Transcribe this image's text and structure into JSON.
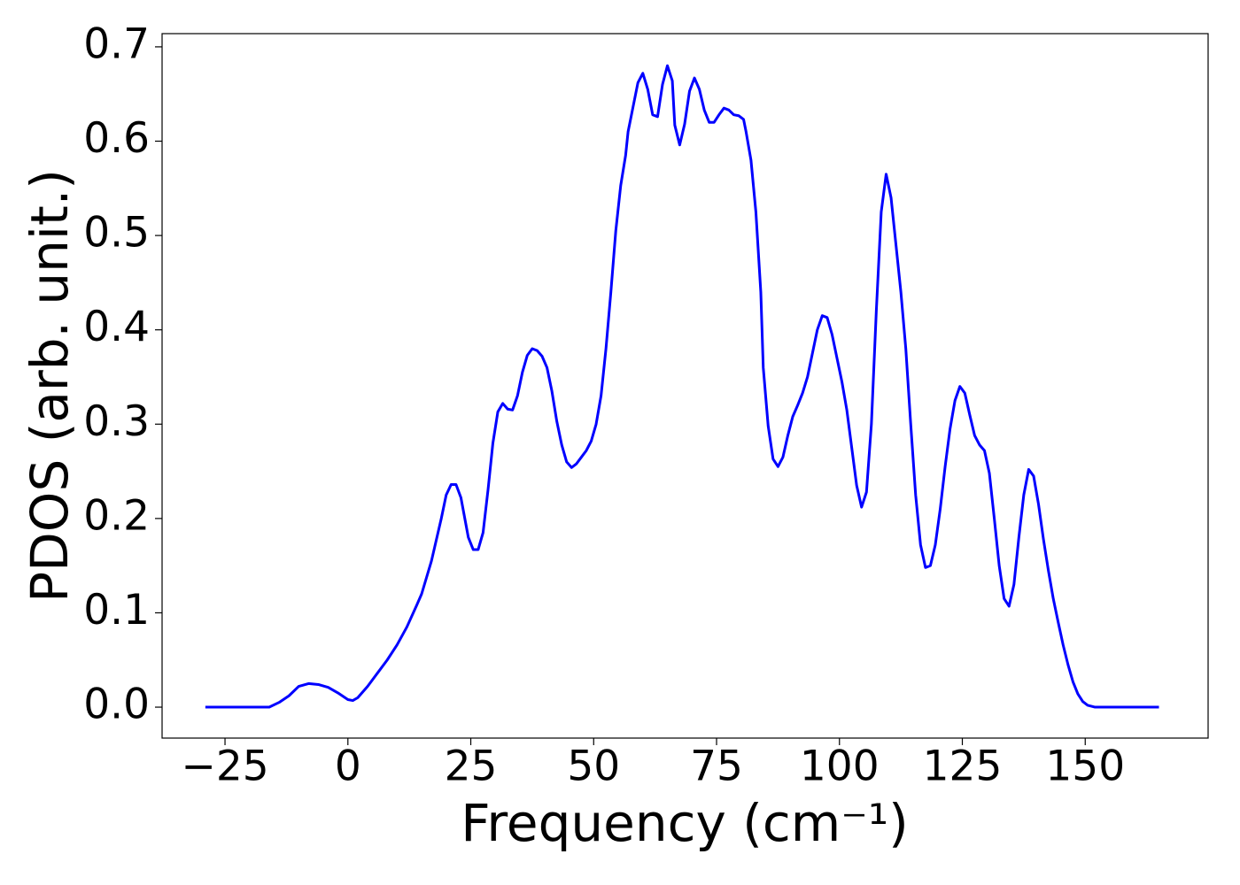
{
  "chart_data": {
    "type": "line",
    "xlabel": "Frequency (cm⁻¹)",
    "ylabel": "PDOS (arb. unit.)",
    "xlim": [
      -37.8,
      175
    ],
    "ylim": [
      -0.0328,
      0.714
    ],
    "xticks": [
      {
        "value": -25,
        "label": "−25"
      },
      0,
      25,
      50,
      75,
      100,
      125,
      150
    ],
    "yticks": [
      {
        "value": 0,
        "label": "0.0"
      },
      0.1,
      0.2,
      0.3,
      0.4,
      0.5,
      0.6,
      0.7
    ],
    "series": [
      {
        "color": "#0000ff",
        "x": [
          -29,
          -16,
          -14,
          -12,
          -10,
          -8,
          -6,
          -4,
          -2,
          0,
          1,
          2,
          4,
          6,
          8,
          10,
          12,
          14,
          15,
          17,
          19,
          20,
          21,
          22,
          23,
          24.5,
          25.5,
          26.5,
          27.5,
          28.5,
          29.5,
          30.5,
          31.5,
          32.5,
          33.5,
          34.5,
          35.5,
          36.5,
          37.5,
          38.5,
          39.5,
          40.5,
          41.5,
          42.5,
          43.5,
          44.5,
          45.5,
          46.5,
          47.5,
          48.5,
          49.5,
          50.5,
          51.5,
          52.5,
          53.5,
          54.5,
          55.5,
          56.5,
          57,
          58,
          59,
          60,
          61,
          62,
          63,
          64,
          65,
          66,
          66.5,
          67.5,
          68.5,
          69.5,
          70.5,
          71.5,
          72.5,
          73.5,
          74.5,
          75.5,
          76.5,
          77.5,
          78.5,
          79.5,
          80.5,
          81,
          82,
          83,
          84,
          84.5,
          85.5,
          86.5,
          87.5,
          88.5,
          89.5,
          90.5,
          91.5,
          92.5,
          93.5,
          94.5,
          95.5,
          96.5,
          97.5,
          98.5,
          99.5,
          100.5,
          101.5,
          102.5,
          103.5,
          104.5,
          105.5,
          106.5,
          107.5,
          108.5,
          109.5,
          110.5,
          111.5,
          112.5,
          113.5,
          114.5,
          115.5,
          116.5,
          117.5,
          118.5,
          119.5,
          120.5,
          121.5,
          122.5,
          123.5,
          124.5,
          125.5,
          126.5,
          127.5,
          128.5,
          129.5,
          130.5,
          131.5,
          132.5,
          133.5,
          134.5,
          135.5,
          136.5,
          137.5,
          138.5,
          139.5,
          140.5,
          141.5,
          142.5,
          143.5,
          144.5,
          145.5,
          146.5,
          147.5,
          148.5,
          149.5,
          150.5,
          152,
          165
        ],
        "values": [
          0,
          0,
          0.005,
          0.012,
          0.022,
          0.025,
          0.024,
          0.021,
          0.015,
          0.008,
          0.007,
          0.01,
          0.022,
          0.036,
          0.05,
          0.066,
          0.085,
          0.108,
          0.12,
          0.155,
          0.2,
          0.225,
          0.236,
          0.236,
          0.222,
          0.18,
          0.167,
          0.167,
          0.185,
          0.23,
          0.28,
          0.313,
          0.322,
          0.316,
          0.315,
          0.33,
          0.355,
          0.373,
          0.38,
          0.378,
          0.372,
          0.36,
          0.335,
          0.303,
          0.278,
          0.26,
          0.254,
          0.258,
          0.265,
          0.272,
          0.282,
          0.3,
          0.33,
          0.38,
          0.44,
          0.505,
          0.553,
          0.585,
          0.61,
          0.636,
          0.662,
          0.672,
          0.655,
          0.628,
          0.626,
          0.66,
          0.68,
          0.664,
          0.617,
          0.596,
          0.618,
          0.653,
          0.667,
          0.655,
          0.633,
          0.62,
          0.62,
          0.628,
          0.635,
          0.633,
          0.628,
          0.627,
          0.623,
          0.61,
          0.58,
          0.525,
          0.44,
          0.36,
          0.298,
          0.263,
          0.255,
          0.265,
          0.288,
          0.308,
          0.32,
          0.333,
          0.35,
          0.375,
          0.4,
          0.415,
          0.413,
          0.395,
          0.37,
          0.345,
          0.315,
          0.275,
          0.235,
          0.212,
          0.228,
          0.3,
          0.42,
          0.525,
          0.565,
          0.54,
          0.49,
          0.44,
          0.38,
          0.3,
          0.225,
          0.172,
          0.148,
          0.15,
          0.172,
          0.21,
          0.255,
          0.295,
          0.325,
          0.34,
          0.333,
          0.31,
          0.288,
          0.278,
          0.272,
          0.248,
          0.2,
          0.15,
          0.115,
          0.107,
          0.13,
          0.18,
          0.225,
          0.252,
          0.245,
          0.215,
          0.178,
          0.145,
          0.115,
          0.09,
          0.066,
          0.045,
          0.027,
          0.014,
          0.006,
          0.002,
          0,
          0
        ]
      }
    ]
  }
}
